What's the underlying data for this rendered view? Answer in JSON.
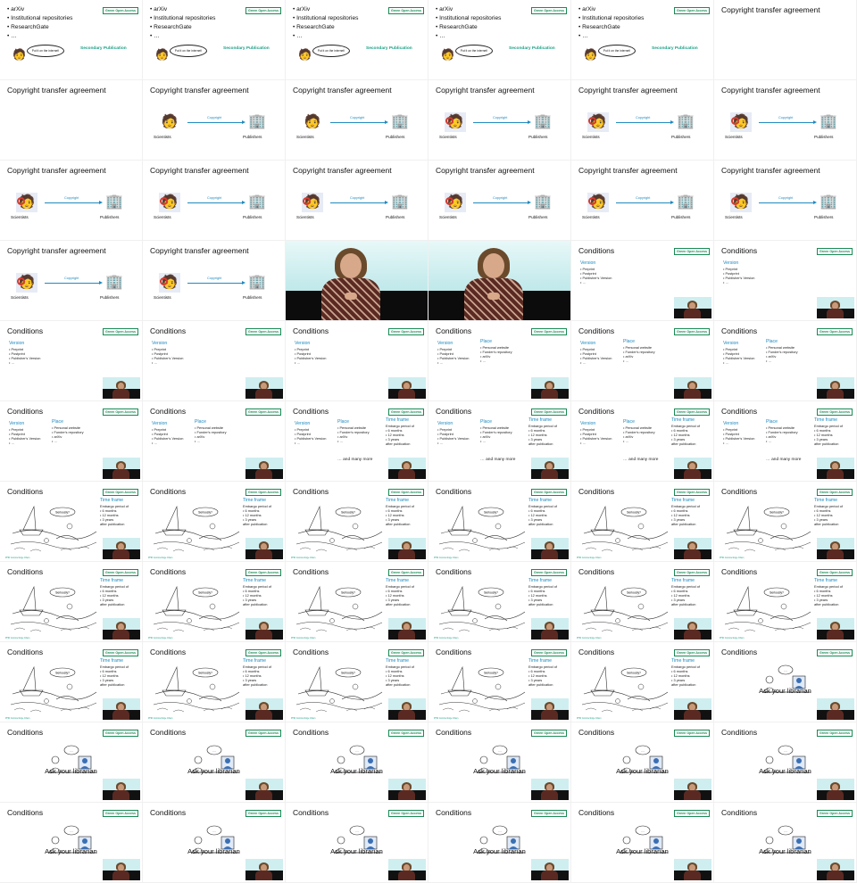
{
  "badge": "Green Open Access",
  "repo_list": [
    "arXiv",
    "Institutional repositories",
    "ResearchGate",
    "…"
  ],
  "speech": "Put it on the internet!",
  "secondary": "Secondary Publication",
  "cta_title": "Copyright transfer agreement",
  "arrow_label": "Copyright",
  "scientists": "Scientists",
  "publishers": "Publishers",
  "conditions": "Conditions",
  "version": {
    "heading": "Version",
    "items": [
      "Preprint",
      "Postprint",
      "Publisher's Version",
      "…"
    ]
  },
  "place": {
    "heading": "Place",
    "items": [
      "Personal website",
      "Funder's repository",
      "arXiv",
      "…"
    ]
  },
  "timeframe": {
    "heading": "Time frame",
    "intro": "Embargo period of",
    "items": [
      "6 months",
      "12 months",
      "3 years"
    ],
    "outro": "after publication"
  },
  "more": "… and many more",
  "bubble2": "Seriously?",
  "credit": "PHD Comics/Jorge Cham",
  "ask": "Ask your librarian",
  "icons": {
    "scientist": "scientist-icon",
    "publisher": "building-icon",
    "megaphone": "megaphone-icon"
  }
}
